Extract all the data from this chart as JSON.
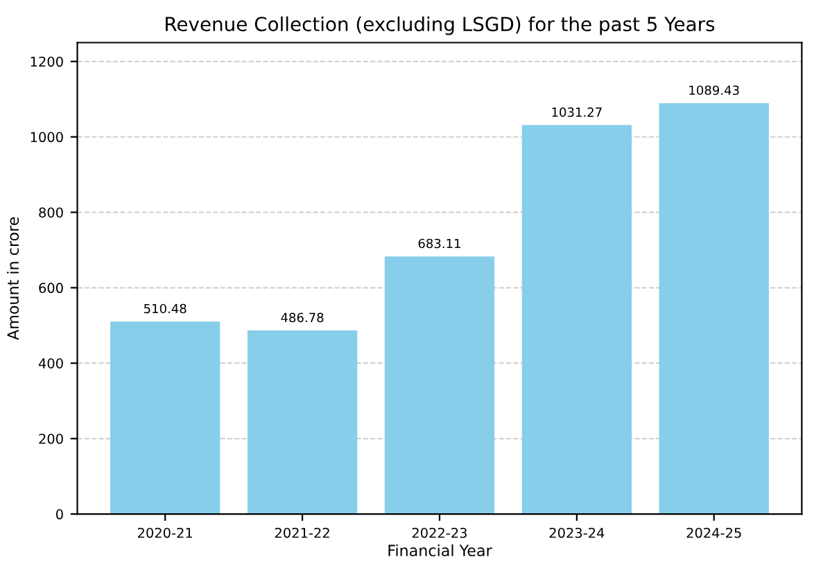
{
  "chart_data": {
    "type": "bar",
    "title": "Revenue Collection (excluding LSGD) for the past 5 Years",
    "xlabel": "Financial Year",
    "ylabel": "Amount in crore",
    "categories": [
      "2020-21",
      "2021-22",
      "2022-23",
      "2023-24",
      "2024-25"
    ],
    "values": [
      510.48,
      486.78,
      683.11,
      1031.27,
      1089.43
    ],
    "color": "#87ceeb",
    "ylim": [
      0,
      1250
    ],
    "yticks": [
      0,
      200,
      400,
      600,
      800,
      1000,
      1200
    ],
    "grid": "y",
    "data_labels": true
  }
}
